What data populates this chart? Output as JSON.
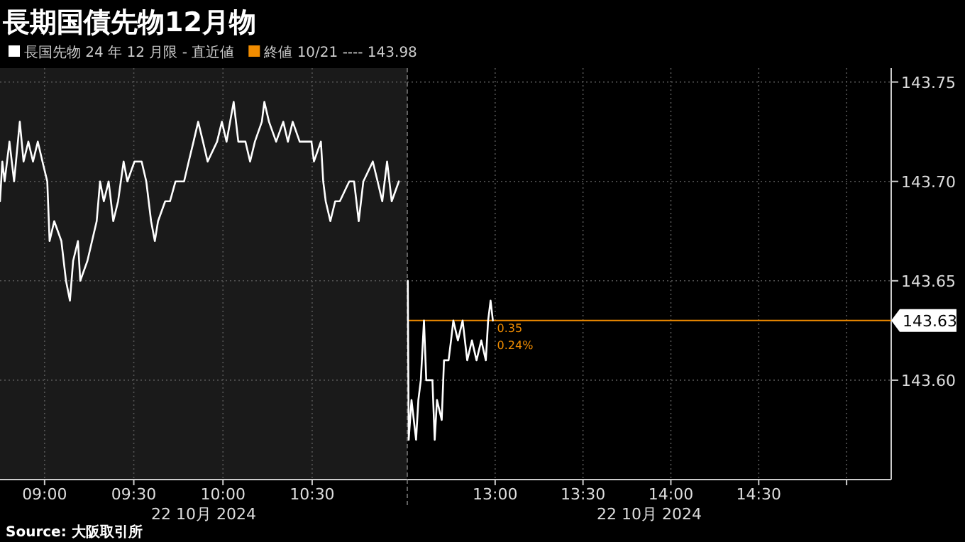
{
  "chart_data": [
    {
      "type": "line",
      "title": "長期国債先物12月物",
      "xlabel": "22 10月 2024",
      "legend": "top left",
      "grid": true,
      "tick_labels": "x",
      "xlim": [
        8.75,
        11.0333
      ],
      "xticks": [
        {
          "value": 9,
          "label": "09:00"
        },
        {
          "value": 9.5,
          "label": "09:30"
        },
        {
          "value": 10,
          "label": "10:00"
        },
        {
          "value": 10.5,
          "label": "10:30"
        }
      ],
      "ylim": [
        143.55,
        143.757
      ],
      "yticks": [
        143.6,
        143.65,
        143.7,
        143.75
      ],
      "annotations": [
        "終値 10/21 ---- 143.98",
        "Source: 大阪取引所"
      ],
      "series": [
        {
          "name": "長国先物 24 年 12 月限 - 直近値",
          "color": "#ffffff",
          "x": [
            8.75,
            8.763,
            8.776,
            8.803,
            8.829,
            8.861,
            8.882,
            8.909,
            8.935,
            8.962,
            8.988,
            9.015,
            9.028,
            9.054,
            9.094,
            9.12,
            9.142,
            9.16,
            9.187,
            9.2,
            9.24,
            9.266,
            9.292,
            9.311,
            9.332,
            9.359,
            9.385,
            9.412,
            9.443,
            9.464,
            9.504,
            9.544,
            9.57,
            9.597,
            9.618,
            9.636,
            9.676,
            9.703,
            9.734,
            9.782,
            9.808,
            9.835,
            9.861,
            9.888,
            9.914,
            9.967,
            9.994,
            10.02,
            10.06,
            10.086,
            10.126,
            10.152,
            10.179,
            10.218,
            10.232,
            10.258,
            10.298,
            10.338,
            10.364,
            10.391,
            10.43,
            10.496,
            10.51,
            10.549,
            10.562,
            10.576,
            10.602,
            10.629,
            10.655,
            10.708,
            10.735,
            10.761,
            10.787,
            10.84,
            10.867,
            10.893,
            10.92,
            10.946,
            10.986
          ],
          "values": [
            143.69,
            143.71,
            143.7,
            143.72,
            143.7,
            143.73,
            143.71,
            143.72,
            143.71,
            143.72,
            143.71,
            143.7,
            143.67,
            143.68,
            143.67,
            143.65,
            143.64,
            143.66,
            143.67,
            143.65,
            143.66,
            143.67,
            143.68,
            143.7,
            143.69,
            143.7,
            143.68,
            143.69,
            143.71,
            143.7,
            143.71,
            143.71,
            143.7,
            143.68,
            143.67,
            143.68,
            143.69,
            143.69,
            143.7,
            143.7,
            143.71,
            143.72,
            143.73,
            143.72,
            143.71,
            143.72,
            143.73,
            143.72,
            143.74,
            143.72,
            143.72,
            143.71,
            143.72,
            143.73,
            143.74,
            143.73,
            143.72,
            143.73,
            143.72,
            143.73,
            143.72,
            143.72,
            143.71,
            143.72,
            143.7,
            143.69,
            143.68,
            143.69,
            143.69,
            143.7,
            143.7,
            143.68,
            143.7,
            143.71,
            143.7,
            143.69,
            143.71,
            143.69,
            143.7
          ]
        }
      ]
    },
    {
      "type": "line",
      "xlabel": "22 10月 2024",
      "grid": true,
      "xlim": [
        12.5,
        15.254
      ],
      "xticks": [
        {
          "value": 13,
          "label": "13:00"
        },
        {
          "value": 13.5,
          "label": "13:30"
        },
        {
          "value": 14,
          "label": "14:00"
        },
        {
          "value": 14.5,
          "label": "14:30"
        },
        {
          "value": 15,
          "label": null
        }
      ],
      "ylim": [
        143.55,
        143.757
      ],
      "yticks": [
        {
          "value": 143.6,
          "label": "143.60"
        },
        143.65,
        {
          "value": 143.7,
          "label": "143.70"
        },
        143.75
      ],
      "ref_lines": [
        {
          "axis": "y",
          "value": 143.63,
          "label": "143.63",
          "color": "#f08c00"
        }
      ],
      "annotations": [
        {
          "text": "0.35",
          "x": 12.987,
          "y": 143.63
        },
        {
          "text": "0.24%",
          "x": 12.987,
          "y": 143.63
        }
      ],
      "series": [
        {
          "color": "#ffffff",
          "x": [
            12.503,
            12.508,
            12.524,
            12.55,
            12.563,
            12.577,
            12.595,
            12.608,
            12.643,
            12.656,
            12.669,
            12.696,
            12.709,
            12.735,
            12.749,
            12.762,
            12.788,
            12.815,
            12.841,
            12.868,
            12.894,
            12.921,
            12.947,
            12.96,
            12.974,
            12.987
          ],
          "values": [
            143.65,
            143.57,
            143.59,
            143.57,
            143.59,
            143.6,
            143.63,
            143.6,
            143.6,
            143.57,
            143.59,
            143.58,
            143.61,
            143.61,
            143.62,
            143.63,
            143.62,
            143.63,
            143.61,
            143.62,
            143.61,
            143.62,
            143.61,
            143.63,
            143.64,
            143.63
          ]
        }
      ]
    }
  ]
}
